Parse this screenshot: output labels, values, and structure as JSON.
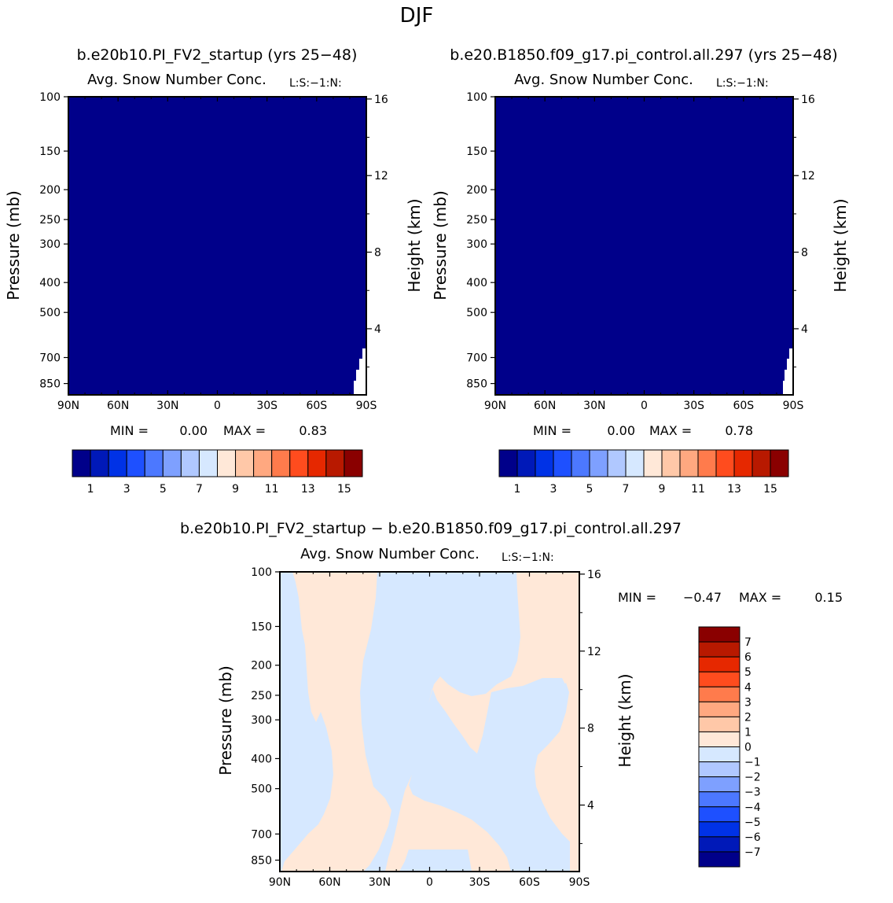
{
  "page_title": "DJF",
  "colors": {
    "palette": [
      "#00008a",
      "#0019b8",
      "#0032e6",
      "#1e50ff",
      "#4c78ff",
      "#7ea0ff",
      "#b0c8ff",
      "#d6e8ff",
      "#ffe8d8",
      "#ffc8a8",
      "#ffa880",
      "#ff7b4c",
      "#ff4c1e",
      "#e62800",
      "#b81900",
      "#8a0000"
    ]
  },
  "panels": [
    {
      "id": "left",
      "case_label": "b.e20b10.PI_FV2_startup (yrs 25−48)",
      "title": "Avg. Snow Number Conc.",
      "units": "L:S:−1:N:",
      "ylabel_left": "Pressure (mb)",
      "ylabel_right": "Height (km)",
      "min_label": "MIN =",
      "min_value": "0.00",
      "max_label": "MAX =",
      "max_value": "0.83",
      "colorbar_labels": [
        "1",
        "3",
        "5",
        "7",
        "9",
        "11",
        "13",
        "15"
      ]
    },
    {
      "id": "right",
      "case_label": "b.e20.B1850.f09_g17.pi_control.all.297 (yrs 25−48)",
      "title": "Avg. Snow Number Conc.",
      "units": "L:S:−1:N:",
      "ylabel_left": "Pressure (mb)",
      "ylabel_right": "Height (km)",
      "min_label": "MIN =",
      "min_value": "0.00",
      "max_label": "MAX =",
      "max_value": "0.78",
      "colorbar_labels": [
        "1",
        "3",
        "5",
        "7",
        "9",
        "11",
        "13",
        "15"
      ]
    },
    {
      "id": "diff",
      "case_label": "b.e20b10.PI_FV2_startup − b.e20.B1850.f09_g17.pi_control.all.297",
      "title": "Avg. Snow Number Conc.",
      "units": "L:S:−1:N:",
      "ylabel_left": "Pressure (mb)",
      "ylabel_right": "Height (km)",
      "min_label": "MIN =",
      "min_value": "−0.47",
      "max_label": "MAX =",
      "max_value": "0.15",
      "colorbar_labels": [
        "7",
        "6",
        "5",
        "4",
        "3",
        "2",
        "1",
        "0",
        "−1",
        "−2",
        "−3",
        "−4",
        "−5",
        "−6",
        "−7"
      ]
    }
  ],
  "chart_data": [
    {
      "type": "heatmap",
      "x_ticks": [
        "90N",
        "60N",
        "30N",
        "0",
        "30S",
        "60S",
        "90S"
      ],
      "y_ticks_left": [
        "100",
        "150",
        "200",
        "250",
        "300",
        "400",
        "500",
        "700",
        "850"
      ],
      "y_ticks_right": [
        "16",
        "12",
        "8",
        "4"
      ],
      "yscale": "log",
      "ylim": [
        100,
        925
      ],
      "field": "Avg. Snow Number Conc.",
      "min": 0.0,
      "max": 0.83,
      "fill_level": "1",
      "missing_region": "lowest levels near 90S"
    },
    {
      "type": "heatmap",
      "x_ticks": [
        "90N",
        "60N",
        "30N",
        "0",
        "30S",
        "60S",
        "90S"
      ],
      "y_ticks_left": [
        "100",
        "150",
        "200",
        "250",
        "300",
        "400",
        "500",
        "700",
        "850"
      ],
      "y_ticks_right": [
        "16",
        "12",
        "8",
        "4"
      ],
      "yscale": "log",
      "ylim": [
        100,
        925
      ],
      "field": "Avg. Snow Number Conc.",
      "min": 0.0,
      "max": 0.78,
      "fill_level": "1",
      "missing_region": "lowest levels near 90S"
    },
    {
      "type": "heatmap",
      "x_ticks": [
        "90N",
        "60N",
        "30N",
        "0",
        "30S",
        "60S",
        "90S"
      ],
      "y_ticks_left": [
        "100",
        "150",
        "200",
        "250",
        "300",
        "400",
        "500",
        "700",
        "850"
      ],
      "y_ticks_right": [
        "16",
        "12",
        "8",
        "4"
      ],
      "yscale": "log",
      "ylim": [
        100,
        925
      ],
      "field": "difference",
      "min": -0.47,
      "max": 0.15,
      "levels_present": [
        "-1 to 0",
        "0 to 1"
      ]
    }
  ]
}
